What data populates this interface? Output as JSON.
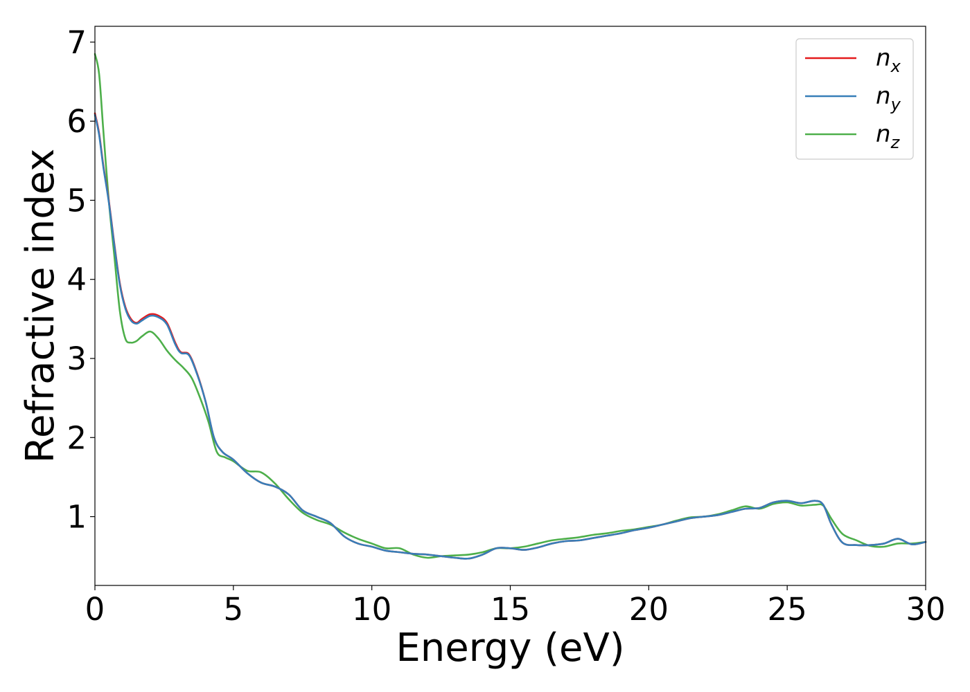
{
  "chart_data": {
    "type": "line",
    "xlabel": "Energy (eV)",
    "ylabel": "Refractive index",
    "xlim": [
      0,
      30
    ],
    "ylim": [
      0.13,
      7.2
    ],
    "xticks": [
      0,
      5,
      10,
      15,
      20,
      25,
      30
    ],
    "yticks": [
      1,
      2,
      3,
      4,
      5,
      6,
      7
    ],
    "grid": false,
    "legend_position": "top-right",
    "series": [
      {
        "name": "n_x",
        "legend_base": "n",
        "legend_sub": "x",
        "color": "#e41a1c",
        "x": [
          0,
          0.15,
          0.3,
          0.5,
          0.7,
          0.9,
          1.1,
          1.3,
          1.5,
          1.7,
          2.0,
          2.3,
          2.6,
          2.9,
          3.1,
          3.4,
          3.7,
          4.0,
          4.3,
          4.6,
          5.0,
          5.5,
          6.0,
          6.5,
          7.0,
          7.5,
          8.0,
          8.5,
          9.0,
          9.5,
          10.0,
          10.5,
          11.0,
          11.5,
          12.0,
          12.5,
          13.0,
          13.5,
          14.0,
          14.5,
          15.0,
          15.5,
          16.0,
          16.5,
          17.0,
          17.5,
          18.0,
          18.5,
          19.0,
          19.5,
          20.0,
          20.5,
          21.0,
          21.5,
          22.0,
          22.5,
          23.0,
          23.5,
          24.0,
          24.5,
          25.0,
          25.5,
          26.0,
          26.3,
          26.6,
          27.0,
          27.5,
          28.0,
          28.5,
          29.0,
          29.5,
          30.0
        ],
        "y": [
          6.1,
          5.85,
          5.45,
          5.0,
          4.45,
          3.95,
          3.65,
          3.5,
          3.45,
          3.5,
          3.56,
          3.54,
          3.45,
          3.2,
          3.08,
          3.05,
          2.8,
          2.45,
          2.0,
          1.82,
          1.72,
          1.55,
          1.43,
          1.38,
          1.28,
          1.08,
          1.0,
          0.92,
          0.75,
          0.66,
          0.62,
          0.57,
          0.55,
          0.53,
          0.52,
          0.5,
          0.48,
          0.47,
          0.52,
          0.6,
          0.6,
          0.58,
          0.61,
          0.66,
          0.69,
          0.7,
          0.73,
          0.76,
          0.79,
          0.83,
          0.86,
          0.9,
          0.94,
          0.98,
          1.0,
          1.02,
          1.06,
          1.1,
          1.11,
          1.18,
          1.2,
          1.17,
          1.2,
          1.15,
          0.9,
          0.67,
          0.64,
          0.64,
          0.66,
          0.72,
          0.65,
          0.68
        ]
      },
      {
        "name": "n_y",
        "legend_base": "n",
        "legend_sub": "y",
        "color": "#377eb8",
        "x": [
          0,
          0.15,
          0.3,
          0.5,
          0.7,
          0.9,
          1.1,
          1.3,
          1.5,
          1.7,
          2.0,
          2.3,
          2.6,
          2.9,
          3.1,
          3.4,
          3.7,
          4.0,
          4.3,
          4.6,
          5.0,
          5.5,
          6.0,
          6.5,
          7.0,
          7.5,
          8.0,
          8.5,
          9.0,
          9.5,
          10.0,
          10.5,
          11.0,
          11.5,
          12.0,
          12.5,
          13.0,
          13.5,
          14.0,
          14.5,
          15.0,
          15.5,
          16.0,
          16.5,
          17.0,
          17.5,
          18.0,
          18.5,
          19.0,
          19.5,
          20.0,
          20.5,
          21.0,
          21.5,
          22.0,
          22.5,
          23.0,
          23.5,
          24.0,
          24.5,
          25.0,
          25.5,
          26.0,
          26.3,
          26.6,
          27.0,
          27.5,
          28.0,
          28.5,
          29.0,
          29.5,
          30.0
        ],
        "y": [
          6.08,
          5.83,
          5.43,
          4.98,
          4.43,
          3.93,
          3.63,
          3.48,
          3.44,
          3.48,
          3.54,
          3.52,
          3.43,
          3.18,
          3.07,
          3.04,
          2.79,
          2.45,
          2.0,
          1.82,
          1.72,
          1.55,
          1.43,
          1.38,
          1.28,
          1.08,
          1.0,
          0.92,
          0.75,
          0.66,
          0.62,
          0.57,
          0.55,
          0.53,
          0.52,
          0.5,
          0.48,
          0.47,
          0.52,
          0.6,
          0.6,
          0.58,
          0.61,
          0.66,
          0.69,
          0.7,
          0.73,
          0.76,
          0.79,
          0.83,
          0.86,
          0.9,
          0.94,
          0.98,
          1.0,
          1.02,
          1.06,
          1.1,
          1.11,
          1.18,
          1.2,
          1.17,
          1.2,
          1.15,
          0.9,
          0.67,
          0.64,
          0.64,
          0.66,
          0.72,
          0.65,
          0.68
        ]
      },
      {
        "name": "n_z",
        "legend_base": "n",
        "legend_sub": "z",
        "color": "#4daf4a",
        "x": [
          0,
          0.15,
          0.3,
          0.5,
          0.7,
          0.9,
          1.1,
          1.3,
          1.5,
          1.7,
          2.0,
          2.3,
          2.6,
          2.9,
          3.2,
          3.5,
          3.8,
          4.1,
          4.4,
          4.7,
          5.0,
          5.5,
          6.0,
          6.5,
          7.0,
          7.5,
          8.0,
          8.5,
          9.0,
          9.5,
          10.0,
          10.5,
          11.0,
          11.5,
          12.0,
          12.5,
          13.0,
          13.5,
          14.0,
          14.5,
          15.0,
          15.5,
          16.0,
          16.5,
          17.0,
          17.5,
          18.0,
          18.5,
          19.0,
          19.5,
          20.0,
          20.5,
          21.0,
          21.5,
          22.0,
          22.5,
          23.0,
          23.5,
          24.0,
          24.5,
          25.0,
          25.5,
          26.0,
          26.3,
          26.6,
          27.0,
          27.5,
          28.0,
          28.5,
          29.0,
          29.5,
          30.0
        ],
        "y": [
          6.85,
          6.6,
          5.9,
          5.0,
          4.3,
          3.6,
          3.25,
          3.2,
          3.22,
          3.28,
          3.34,
          3.25,
          3.1,
          2.98,
          2.88,
          2.75,
          2.5,
          2.2,
          1.82,
          1.75,
          1.7,
          1.58,
          1.56,
          1.42,
          1.22,
          1.05,
          0.96,
          0.9,
          0.8,
          0.72,
          0.66,
          0.6,
          0.6,
          0.52,
          0.48,
          0.5,
          0.51,
          0.52,
          0.55,
          0.6,
          0.6,
          0.62,
          0.66,
          0.7,
          0.72,
          0.74,
          0.77,
          0.79,
          0.82,
          0.84,
          0.87,
          0.9,
          0.95,
          0.99,
          1.0,
          1.03,
          1.08,
          1.13,
          1.1,
          1.16,
          1.18,
          1.14,
          1.15,
          1.14,
          0.97,
          0.78,
          0.7,
          0.63,
          0.62,
          0.66,
          0.66,
          0.68
        ]
      }
    ]
  }
}
